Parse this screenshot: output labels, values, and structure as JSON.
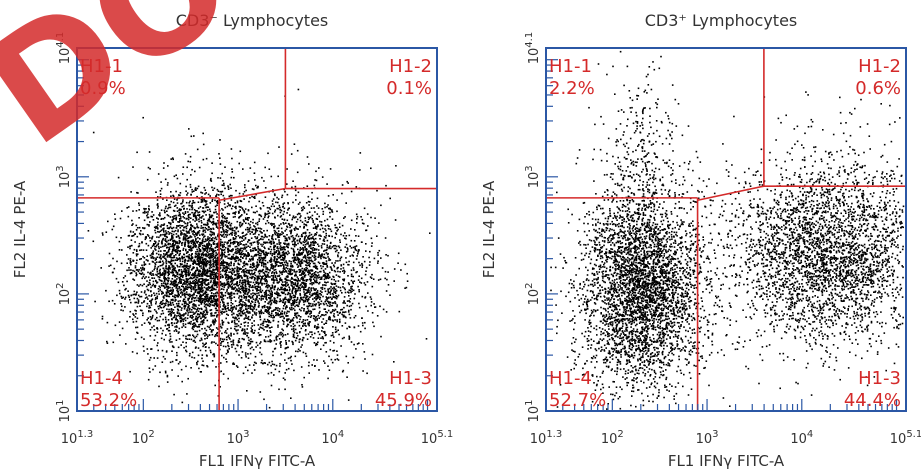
{
  "watermark": {
    "text": "DO NOT COPY",
    "color": "#d42a2a",
    "opacity": 0.85
  },
  "colors": {
    "frame": "#2b57a5",
    "gate": "#d42a2a",
    "dots": "#000000",
    "text": "#333333"
  },
  "chart_data": [
    {
      "type": "scatter",
      "title": "CD3⁻ Lymphocytes",
      "xlabel": "FL1 IFNγ FITC-A",
      "ylabel": "FL2 IL-4 PE-A",
      "x_scale": "log10",
      "y_scale": "log10",
      "xlim": [
        1.3,
        5.1
      ],
      "ylim": [
        1.0,
        4.1
      ],
      "x_ticks": [
        {
          "base": "10",
          "exp": "1.3",
          "value": 1.3
        },
        {
          "base": "10",
          "exp": "2",
          "value": 2
        },
        {
          "base": "10",
          "exp": "3",
          "value": 3
        },
        {
          "base": "10",
          "exp": "4",
          "value": 4
        },
        {
          "base": "10",
          "exp": "5.1",
          "value": 5.1
        }
      ],
      "y_ticks": [
        {
          "base": "10",
          "exp": "1",
          "value": 1
        },
        {
          "base": "10",
          "exp": "2",
          "value": 2
        },
        {
          "base": "10",
          "exp": "3",
          "value": 3
        },
        {
          "base": "10",
          "exp": "4.1",
          "value": 4.1
        }
      ],
      "gates": {
        "vertical_lower_x": 2.8,
        "vertical_upper_x": 3.5,
        "horizontal_left_y": 2.82,
        "horizontal_right_y": 2.9,
        "kink_y": 2.8
      },
      "quadrants": [
        {
          "name": "H1-1",
          "value": "0.9%",
          "position": "top-left"
        },
        {
          "name": "H1-2",
          "value": "0.1%",
          "position": "top-right"
        },
        {
          "name": "H1-4",
          "value": "53.2%",
          "position": "bottom-left"
        },
        {
          "name": "H1-3",
          "value": "45.9%",
          "position": "bottom-right"
        }
      ],
      "populations": [
        {
          "cx": 2.55,
          "cy": 2.2,
          "sx": 0.35,
          "sy": 0.35,
          "n": 3600
        },
        {
          "cx": 3.55,
          "cy": 2.15,
          "sx": 0.42,
          "sy": 0.35,
          "n": 3000
        },
        {
          "cx": 2.6,
          "cy": 2.9,
          "sx": 0.35,
          "sy": 0.2,
          "n": 60
        },
        {
          "cx": 3.8,
          "cy": 3.3,
          "sx": 0.3,
          "sy": 0.25,
          "n": 8
        }
      ],
      "seed": 11
    },
    {
      "type": "scatter",
      "title": "CD3⁺ Lymphocytes",
      "xlabel": "FL1 IFNγ FITC-A",
      "ylabel": "FL2 IL-4 PE-A",
      "x_scale": "log10",
      "y_scale": "log10",
      "xlim": [
        1.3,
        5.1
      ],
      "ylim": [
        1.0,
        4.1
      ],
      "x_ticks": [
        {
          "base": "10",
          "exp": "1.3",
          "value": 1.3
        },
        {
          "base": "10",
          "exp": "2",
          "value": 2
        },
        {
          "base": "10",
          "exp": "3",
          "value": 3
        },
        {
          "base": "10",
          "exp": "4",
          "value": 4
        },
        {
          "base": "10",
          "exp": "5.1",
          "value": 5.1
        }
      ],
      "y_ticks": [
        {
          "base": "10",
          "exp": "1",
          "value": 1
        },
        {
          "base": "10",
          "exp": "2",
          "value": 2
        },
        {
          "base": "10",
          "exp": "3",
          "value": 3
        },
        {
          "base": "10",
          "exp": "4.1",
          "value": 4.1
        }
      ],
      "gates": {
        "vertical_lower_x": 2.9,
        "vertical_upper_x": 3.6,
        "horizontal_left_y": 2.82,
        "horizontal_right_y": 2.92,
        "kink_y": 2.8
      },
      "quadrants": [
        {
          "name": "H1-1",
          "value": "2.2%",
          "position": "top-left"
        },
        {
          "name": "H1-2",
          "value": "0.6%",
          "position": "top-right"
        },
        {
          "name": "H1-4",
          "value": "52.7%",
          "position": "bottom-left"
        },
        {
          "name": "H1-3",
          "value": "44.4%",
          "position": "bottom-right"
        }
      ],
      "populations": [
        {
          "cx": 2.3,
          "cy": 2.05,
          "sx": 0.33,
          "sy": 0.42,
          "n": 3800
        },
        {
          "cx": 4.25,
          "cy": 2.35,
          "sx": 0.5,
          "sy": 0.4,
          "n": 3200
        },
        {
          "cx": 2.3,
          "cy": 3.25,
          "sx": 0.2,
          "sy": 0.35,
          "n": 250
        },
        {
          "cx": 4.5,
          "cy": 3.2,
          "sx": 0.25,
          "sy": 0.3,
          "n": 40
        }
      ],
      "seed": 29
    }
  ]
}
